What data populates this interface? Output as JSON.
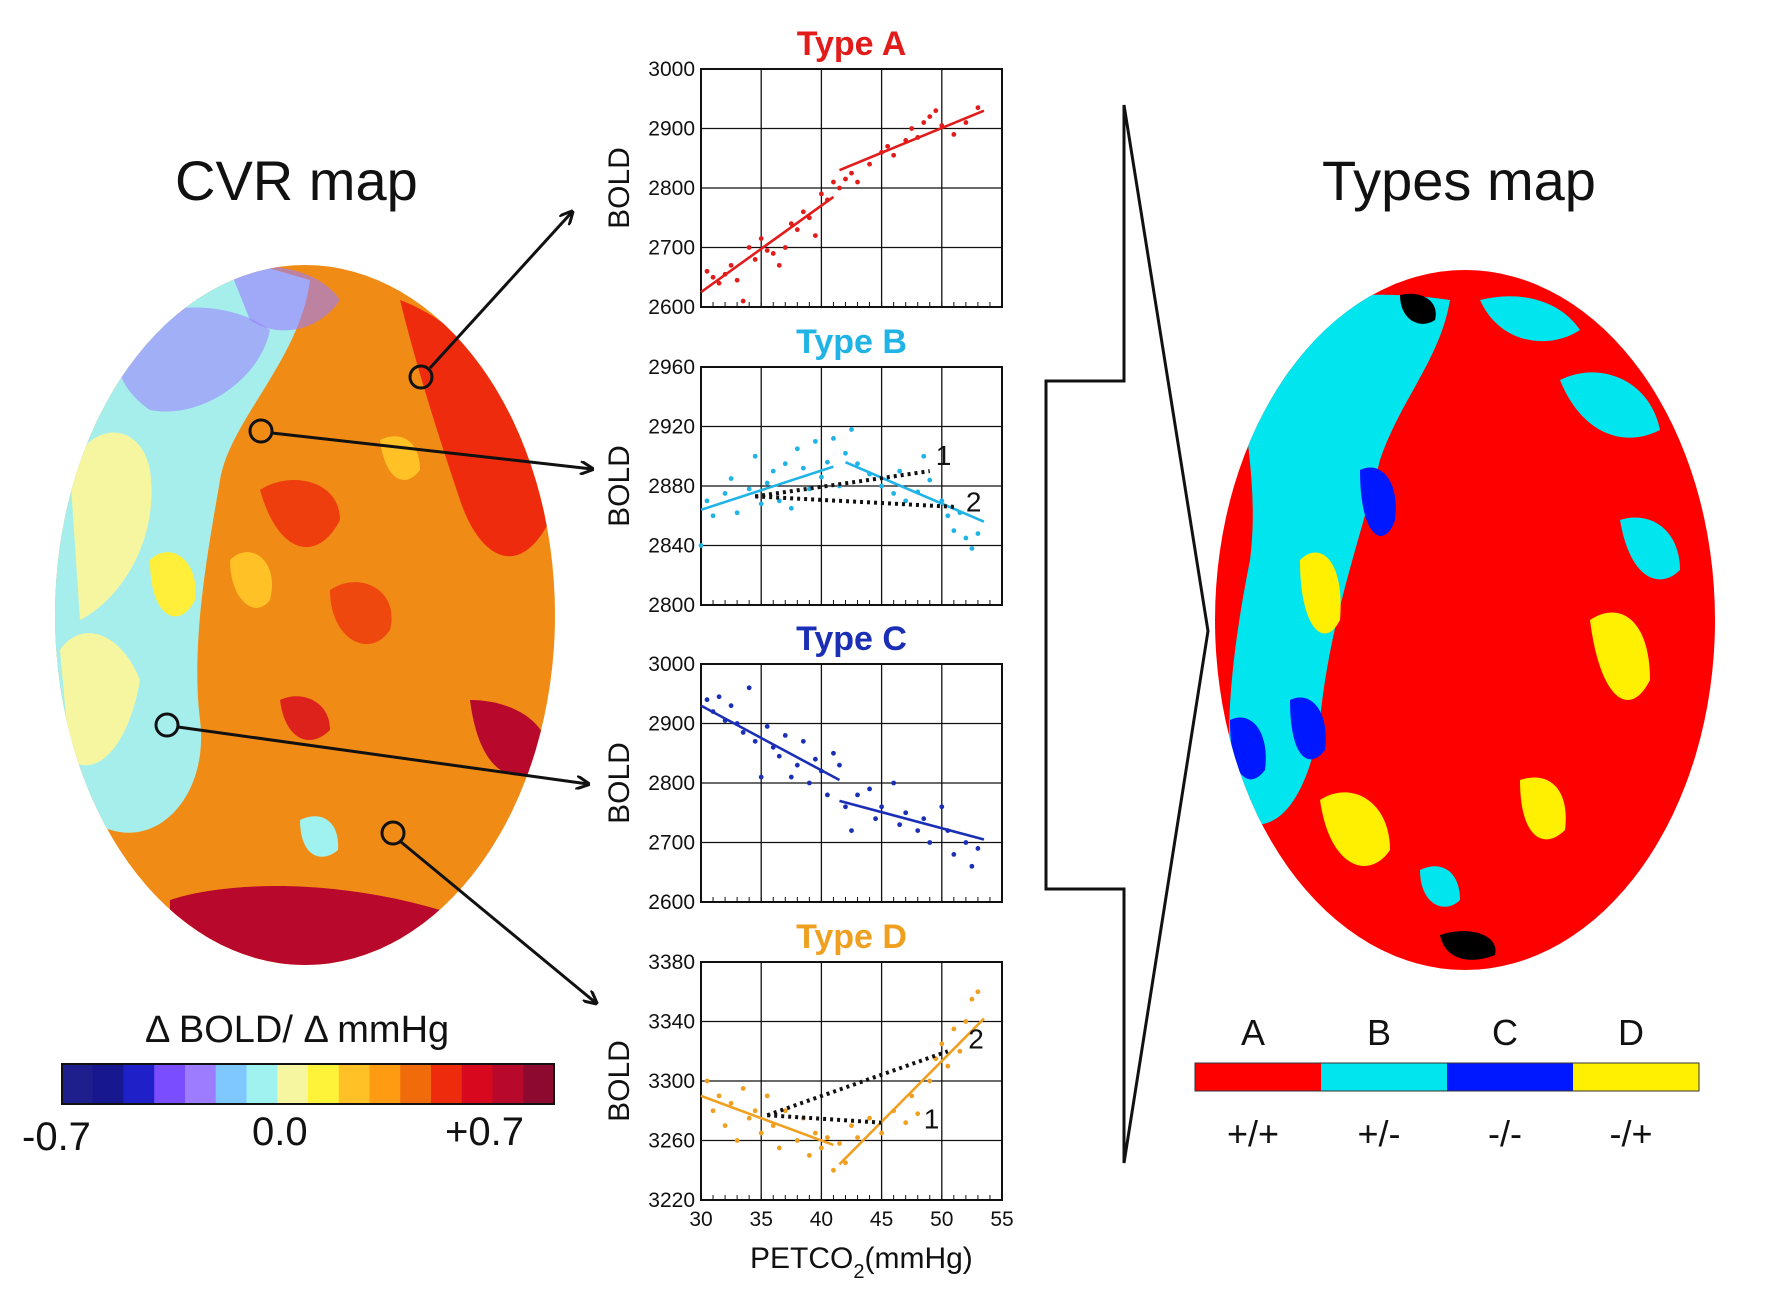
{
  "figure": {
    "cvr_title": "CVR map",
    "types_title": "Types map",
    "colorbar": {
      "label": "Δ BOLD/ Δ mmHg",
      "min": "-0.7",
      "mid": "0.0",
      "max": "+0.7",
      "colors": [
        "#1e1e8c",
        "#17178f",
        "#2020c8",
        "#7a4dff",
        "#9d7cff",
        "#7fc8ff",
        "#9ff2ef",
        "#f6f6a0",
        "#fff33a",
        "#ffc126",
        "#ff9b12",
        "#f26b0b",
        "#ee2b0d",
        "#d8081e",
        "#b8082c",
        "#8e0930"
      ]
    },
    "types_legend": [
      {
        "letter": "A",
        "sign": "+/+",
        "color": "#ff0000"
      },
      {
        "letter": "B",
        "sign": "+/-",
        "color": "#00e5ee"
      },
      {
        "letter": "C",
        "sign": "-/-",
        "color": "#0018ff"
      },
      {
        "letter": "D",
        "sign": "-/+",
        "color": "#ffef00"
      }
    ],
    "x_axis_label": "PETCO",
    "x_axis_sub": "2",
    "x_axis_unit": "(mmHg)",
    "x_ticks": [
      "30",
      "35",
      "40",
      "45",
      "50",
      "55"
    ]
  },
  "chart_data": [
    {
      "type": "scatter",
      "title": "Type A",
      "color": "#e21b1b",
      "ylabel": "BOLD",
      "xlabel": "PETCO2(mmHg)",
      "xlim": [
        30,
        55
      ],
      "ylim": [
        2600,
        3000
      ],
      "yticks": [
        "3000",
        "2900",
        "2800",
        "2700",
        "2600"
      ],
      "fit_lines": [
        {
          "x": [
            30,
            41
          ],
          "y": [
            2625,
            2785
          ]
        },
        {
          "x": [
            41.5,
            53.5
          ],
          "y": [
            2830,
            2930
          ]
        }
      ],
      "dashed_lines": [],
      "line_labels": [],
      "points": [
        [
          30.5,
          2660
        ],
        [
          31,
          2650
        ],
        [
          31.5,
          2640
        ],
        [
          32,
          2655
        ],
        [
          32.5,
          2670
        ],
        [
          33,
          2645
        ],
        [
          33.5,
          2610
        ],
        [
          34,
          2700
        ],
        [
          34.5,
          2680
        ],
        [
          35,
          2715
        ],
        [
          35.5,
          2695
        ],
        [
          36,
          2690
        ],
        [
          36.5,
          2670
        ],
        [
          37,
          2700
        ],
        [
          37.5,
          2740
        ],
        [
          38,
          2730
        ],
        [
          38.5,
          2760
        ],
        [
          39,
          2750
        ],
        [
          39.5,
          2720
        ],
        [
          40,
          2790
        ],
        [
          40.5,
          2780
        ],
        [
          41,
          2810
        ],
        [
          41.5,
          2800
        ],
        [
          42,
          2815
        ],
        [
          42.5,
          2825
        ],
        [
          43,
          2810
        ],
        [
          44,
          2840
        ],
        [
          45,
          2860
        ],
        [
          45.5,
          2870
        ],
        [
          46,
          2855
        ],
        [
          47,
          2880
        ],
        [
          47.5,
          2900
        ],
        [
          48,
          2885
        ],
        [
          48.5,
          2910
        ],
        [
          49,
          2920
        ],
        [
          49.5,
          2930
        ],
        [
          50,
          2905
        ],
        [
          51,
          2890
        ],
        [
          52,
          2910
        ],
        [
          53,
          2935
        ]
      ]
    },
    {
      "type": "scatter",
      "title": "Type B",
      "color": "#1fb3e6",
      "ylabel": "BOLD",
      "xlabel": "PETCO2(mmHg)",
      "xlim": [
        30,
        55
      ],
      "ylim": [
        2800,
        2960
      ],
      "yticks": [
        "2960",
        "2920",
        "2880",
        "2840",
        "2800"
      ],
      "fit_lines": [
        {
          "x": [
            30,
            41
          ],
          "y": [
            2864,
            2893
          ]
        },
        {
          "x": [
            42,
            53.5
          ],
          "y": [
            2896,
            2856
          ]
        }
      ],
      "dashed_lines": [
        {
          "x": [
            34.5,
            49
          ],
          "y": [
            2873,
            2890
          ]
        },
        {
          "x": [
            34.5,
            51
          ],
          "y": [
            2873,
            2866
          ]
        }
      ],
      "line_labels": [
        {
          "text": "1",
          "x": 49.5,
          "y": 2894
        },
        {
          "text": "2",
          "x": 52,
          "y": 2863
        }
      ],
      "points": [
        [
          30,
          2840
        ],
        [
          30.5,
          2870
        ],
        [
          31,
          2860
        ],
        [
          32,
          2875
        ],
        [
          32.5,
          2885
        ],
        [
          33,
          2862
        ],
        [
          34,
          2878
        ],
        [
          34.5,
          2900
        ],
        [
          35,
          2868
        ],
        [
          35.5,
          2882
        ],
        [
          36,
          2890
        ],
        [
          36.5,
          2870
        ],
        [
          37,
          2895
        ],
        [
          37.5,
          2865
        ],
        [
          38,
          2905
        ],
        [
          38.5,
          2892
        ],
        [
          39,
          2878
        ],
        [
          39.5,
          2910
        ],
        [
          40,
          2886
        ],
        [
          40.5,
          2896
        ],
        [
          41,
          2912
        ],
        [
          41.5,
          2880
        ],
        [
          42,
          2902
        ],
        [
          42.5,
          2918
        ],
        [
          43,
          2895
        ],
        [
          44,
          2888
        ],
        [
          45,
          2880
        ],
        [
          46,
          2875
        ],
        [
          46.5,
          2890
        ],
        [
          47,
          2870
        ],
        [
          48,
          2876
        ],
        [
          48.5,
          2900
        ],
        [
          49,
          2884
        ],
        [
          50,
          2870
        ],
        [
          50.5,
          2860
        ],
        [
          51,
          2850
        ],
        [
          51.5,
          2862
        ],
        [
          52,
          2845
        ],
        [
          52.5,
          2838
        ],
        [
          53,
          2848
        ]
      ]
    },
    {
      "type": "scatter",
      "title": "Type C",
      "color": "#1a2fb5",
      "ylabel": "BOLD",
      "xlabel": "PETCO2(mmHg)",
      "xlim": [
        30,
        55
      ],
      "ylim": [
        2600,
        3000
      ],
      "yticks": [
        "3000",
        "2900",
        "2800",
        "2700",
        "2600"
      ],
      "fit_lines": [
        {
          "x": [
            30,
            41.5
          ],
          "y": [
            2930,
            2805
          ]
        },
        {
          "x": [
            41.5,
            53.5
          ],
          "y": [
            2770,
            2705
          ]
        }
      ],
      "dashed_lines": [],
      "line_labels": [],
      "points": [
        [
          30.5,
          2940
        ],
        [
          31,
          2920
        ],
        [
          31.5,
          2945
        ],
        [
          32,
          2905
        ],
        [
          32.5,
          2930
        ],
        [
          33,
          2900
        ],
        [
          33.5,
          2885
        ],
        [
          34,
          2960
        ],
        [
          34.5,
          2870
        ],
        [
          35,
          2810
        ],
        [
          35.5,
          2895
        ],
        [
          36,
          2860
        ],
        [
          36.5,
          2845
        ],
        [
          37,
          2880
        ],
        [
          37.5,
          2810
        ],
        [
          38,
          2830
        ],
        [
          38.5,
          2870
        ],
        [
          39,
          2800
        ],
        [
          39.5,
          2840
        ],
        [
          40,
          2820
        ],
        [
          40.5,
          2780
        ],
        [
          41,
          2850
        ],
        [
          41.5,
          2830
        ],
        [
          42,
          2760
        ],
        [
          42.5,
          2720
        ],
        [
          43,
          2780
        ],
        [
          44,
          2790
        ],
        [
          44.5,
          2740
        ],
        [
          45,
          2760
        ],
        [
          46,
          2800
        ],
        [
          46.5,
          2730
        ],
        [
          47,
          2750
        ],
        [
          48,
          2720
        ],
        [
          48.5,
          2740
        ],
        [
          49,
          2700
        ],
        [
          50,
          2760
        ],
        [
          50.5,
          2720
        ],
        [
          51,
          2680
        ],
        [
          52,
          2700
        ],
        [
          52.5,
          2660
        ],
        [
          53,
          2690
        ]
      ]
    },
    {
      "type": "scatter",
      "title": "Type D",
      "color": "#f0a020",
      "ylabel": "BOLD",
      "xlabel": "PETCO2(mmHg)",
      "xlim": [
        30,
        55
      ],
      "ylim": [
        3220,
        3380
      ],
      "yticks": [
        "3380",
        "3340",
        "3300",
        "3260",
        "3220"
      ],
      "fit_lines": [
        {
          "x": [
            30,
            41
          ],
          "y": [
            3290,
            3257
          ]
        },
        {
          "x": [
            41.5,
            53.5
          ],
          "y": [
            3244,
            3342
          ]
        }
      ],
      "dashed_lines": [
        {
          "x": [
            35.5,
            50.5
          ],
          "y": [
            3277,
            3320
          ]
        },
        {
          "x": [
            35.5,
            45
          ],
          "y": [
            3277,
            3272
          ]
        }
      ],
      "line_labels": [
        {
          "text": "1",
          "x": 48.5,
          "y": 3268
        },
        {
          "text": "2",
          "x": 52.2,
          "y": 3322
        }
      ],
      "points": [
        [
          30.5,
          3300
        ],
        [
          31,
          3280
        ],
        [
          31.5,
          3290
        ],
        [
          32,
          3270
        ],
        [
          32.5,
          3285
        ],
        [
          33,
          3260
        ],
        [
          33.5,
          3295
        ],
        [
          34,
          3275
        ],
        [
          34.5,
          3280
        ],
        [
          35,
          3265
        ],
        [
          35.5,
          3290
        ],
        [
          36,
          3270
        ],
        [
          36.5,
          3255
        ],
        [
          37,
          3280
        ],
        [
          38,
          3260
        ],
        [
          38.5,
          3275
        ],
        [
          39,
          3250
        ],
        [
          39.5,
          3265
        ],
        [
          40,
          3255
        ],
        [
          40.5,
          3262
        ],
        [
          41,
          3240
        ],
        [
          41.5,
          3258
        ],
        [
          42,
          3245
        ],
        [
          42.5,
          3270
        ],
        [
          43,
          3262
        ],
        [
          44,
          3275
        ],
        [
          45,
          3265
        ],
        [
          46,
          3280
        ],
        [
          47,
          3272
        ],
        [
          47.5,
          3290
        ],
        [
          48,
          3278
        ],
        [
          49,
          3300
        ],
        [
          49.5,
          3315
        ],
        [
          50,
          3325
        ],
        [
          50.5,
          3310
        ],
        [
          51,
          3335
        ],
        [
          51.5,
          3320
        ],
        [
          52,
          3340
        ],
        [
          52.5,
          3355
        ],
        [
          53,
          3360
        ]
      ]
    }
  ]
}
